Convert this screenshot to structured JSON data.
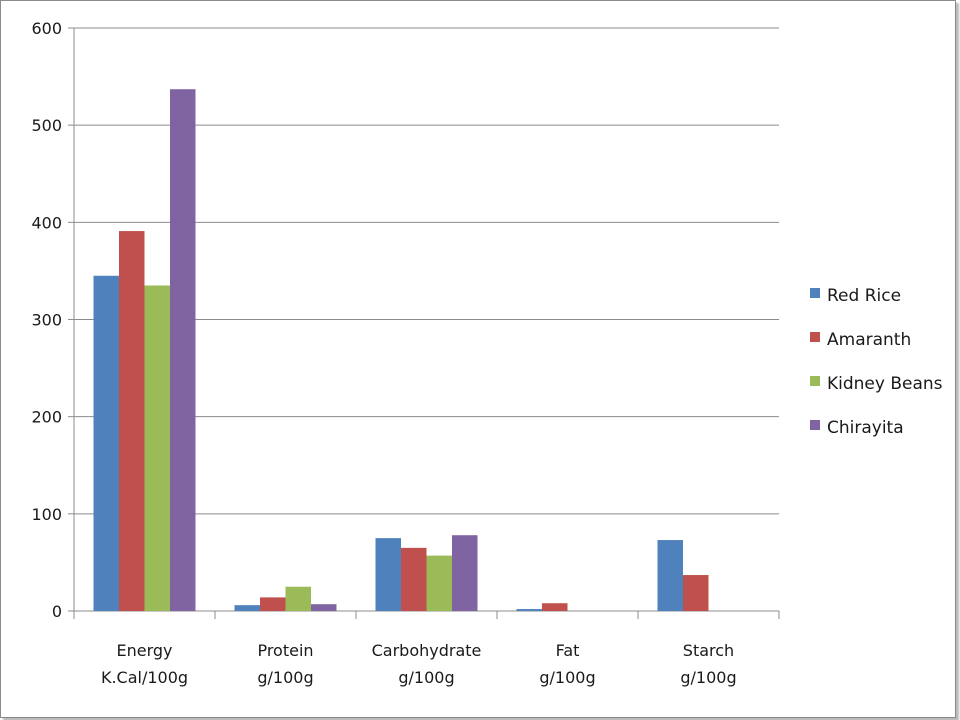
{
  "chart_data": {
    "type": "bar",
    "categories": [
      [
        "Energy",
        "K.Cal/100g"
      ],
      [
        "Protein",
        "g/100g"
      ],
      [
        "Carbohydrate",
        "g/100g"
      ],
      [
        "Fat",
        "g/100g"
      ],
      [
        "Starch",
        "g/100g"
      ]
    ],
    "series": [
      {
        "name": "Red Rice",
        "color": "#4f81bd",
        "values": [
          345,
          6,
          75,
          2,
          73
        ]
      },
      {
        "name": "Amaranth",
        "color": "#c0504d",
        "values": [
          391,
          14,
          65,
          8,
          37
        ]
      },
      {
        "name": "Kidney Beans",
        "color": "#9bbb59",
        "values": [
          335,
          25,
          57,
          0,
          0
        ]
      },
      {
        "name": "Chirayita",
        "color": "#8064a2",
        "values": [
          537,
          7,
          78,
          0,
          0
        ]
      }
    ],
    "yticks": [
      "0",
      "100",
      "200",
      "300",
      "400",
      "500",
      "600"
    ],
    "ylim": [
      0,
      600
    ],
    "grid": true,
    "legend_position": "right"
  }
}
